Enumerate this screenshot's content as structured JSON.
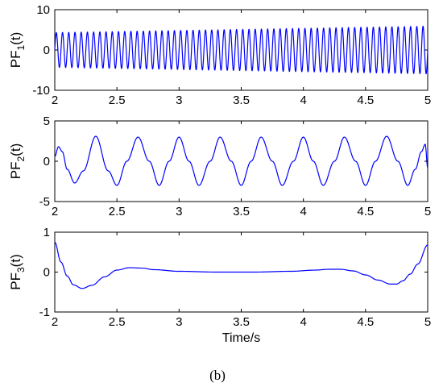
{
  "caption": "(b)",
  "chart_data": [
    {
      "type": "line",
      "ylabel": "PF",
      "ylabel_sub": "1",
      "ylabel_suffix": "(t)",
      "xlabel": "",
      "xlim": [
        2,
        5
      ],
      "ylim": [
        -10,
        10
      ],
      "xticks": [
        "2",
        "2.5",
        "3",
        "3.5",
        "4",
        "4.5",
        "5"
      ],
      "yticks": [
        "10",
        "0",
        "-10"
      ],
      "color": "#0000ff",
      "signal": {
        "kind": "oscillation",
        "cycles": 60,
        "amplitude_start": 4.3,
        "amplitude_end": 5.9,
        "offset": 0
      }
    },
    {
      "type": "line",
      "ylabel": "PF",
      "ylabel_sub": "2",
      "ylabel_suffix": "(t)",
      "xlabel": "",
      "xlim": [
        2,
        5
      ],
      "ylim": [
        -5,
        5
      ],
      "xticks": [
        "2",
        "2.5",
        "3",
        "3.5",
        "4",
        "4.5",
        "5"
      ],
      "yticks": [
        "5",
        "0",
        "-5"
      ],
      "color": "#0000ff",
      "signal": {
        "kind": "points",
        "x": [
          2.0,
          2.03,
          2.06,
          2.1,
          2.16,
          2.23,
          2.33,
          2.43,
          2.5,
          2.58,
          2.67,
          2.76,
          2.84,
          2.92,
          3.0,
          3.08,
          3.16,
          3.25,
          3.33,
          3.42,
          3.5,
          3.58,
          3.66,
          3.75,
          3.83,
          3.92,
          4.0,
          4.08,
          4.16,
          4.25,
          4.33,
          4.42,
          4.5,
          4.58,
          4.67,
          4.76,
          4.84,
          4.9,
          4.95,
          4.98,
          5.0
        ],
        "y": [
          0.6,
          1.8,
          1.2,
          -1.0,
          -2.7,
          -1.2,
          3.1,
          -1.2,
          -3.0,
          0.0,
          3.0,
          0.0,
          -3.0,
          0.0,
          3.0,
          0.0,
          -3.0,
          0.0,
          3.0,
          0.0,
          -3.0,
          0.0,
          3.0,
          0.0,
          -3.0,
          0.0,
          3.0,
          0.0,
          -3.0,
          0.0,
          3.0,
          0.0,
          -3.0,
          0.0,
          3.1,
          0.0,
          -3.0,
          -1.0,
          1.2,
          2.1,
          -0.8
        ]
      }
    },
    {
      "type": "line",
      "ylabel": "PF",
      "ylabel_sub": "3",
      "ylabel_suffix": "(t)",
      "xlabel": "Time/s",
      "xlim": [
        2,
        5
      ],
      "ylim": [
        -1,
        1
      ],
      "xticks": [
        "2",
        "2.5",
        "3",
        "3.5",
        "4",
        "4.5",
        "5"
      ],
      "yticks": [
        "1",
        "0",
        "-1"
      ],
      "color": "#0000ff",
      "signal": {
        "kind": "points",
        "x": [
          2.0,
          2.05,
          2.1,
          2.15,
          2.22,
          2.3,
          2.4,
          2.5,
          2.6,
          2.7,
          2.8,
          3.0,
          3.3,
          3.6,
          3.9,
          4.1,
          4.2,
          4.3,
          4.4,
          4.5,
          4.6,
          4.7,
          4.75,
          4.8,
          4.86,
          4.92,
          5.0
        ],
        "y": [
          0.75,
          0.25,
          -0.1,
          -0.32,
          -0.41,
          -0.33,
          -0.12,
          0.05,
          0.11,
          0.1,
          0.06,
          0.02,
          0.0,
          0.0,
          0.02,
          0.05,
          0.07,
          0.07,
          0.03,
          -0.07,
          -0.2,
          -0.3,
          -0.3,
          -0.22,
          -0.05,
          0.2,
          0.68
        ]
      }
    }
  ]
}
